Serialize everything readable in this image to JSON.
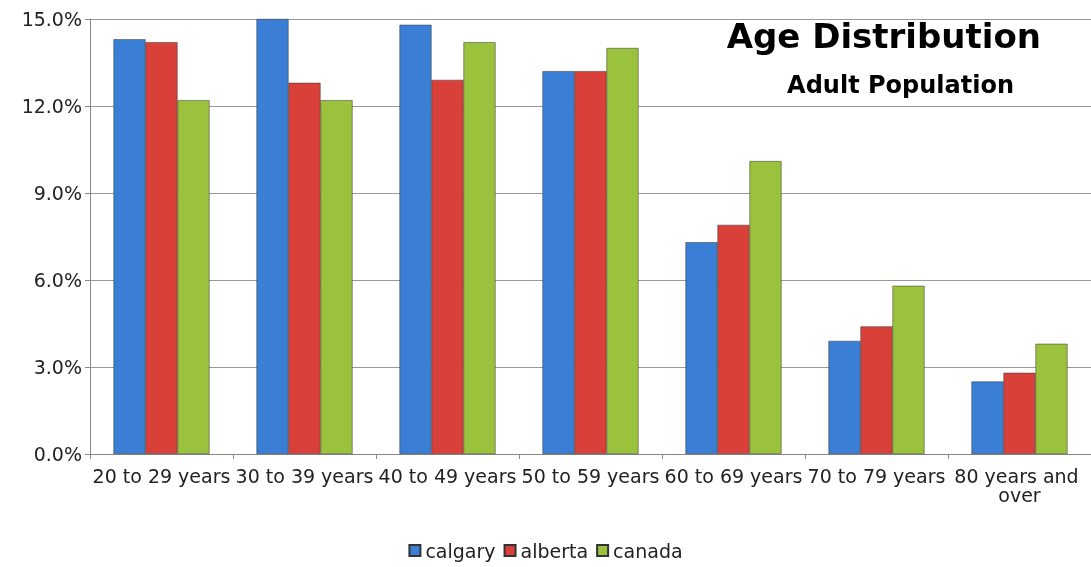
{
  "chart_data": {
    "type": "bar",
    "title": "Age Distribution",
    "subtitle": "Adult Population",
    "categories": [
      "20 to 29 years",
      "30 to 39 years",
      "40 to 49 years",
      "50 to 59 years",
      "60 to 69 years",
      "70 to 79 years",
      "80 years and over"
    ],
    "series": [
      {
        "name": "calgary",
        "color": "#3a7fd5",
        "values": [
          14.3,
          15.0,
          14.8,
          13.2,
          7.3,
          3.9,
          2.5
        ]
      },
      {
        "name": "alberta",
        "color": "#d9403a",
        "values": [
          14.2,
          12.8,
          12.9,
          13.2,
          7.9,
          4.4,
          2.8
        ]
      },
      {
        "name": "canada",
        "color": "#9bc23c",
        "values": [
          12.2,
          12.2,
          14.2,
          14.0,
          10.1,
          5.8,
          3.8
        ]
      }
    ],
    "ylim": [
      0,
      15
    ],
    "yticks": [
      {
        "value": 0,
        "label": "0.0%"
      },
      {
        "value": 3,
        "label": "3.0%"
      },
      {
        "value": 6,
        "label": "6.0%"
      },
      {
        "value": 9,
        "label": "9.0%"
      },
      {
        "value": 12,
        "label": "12.0%"
      },
      {
        "value": 15,
        "label": "15.0%"
      }
    ],
    "grid": "y",
    "legend": "bottom"
  }
}
